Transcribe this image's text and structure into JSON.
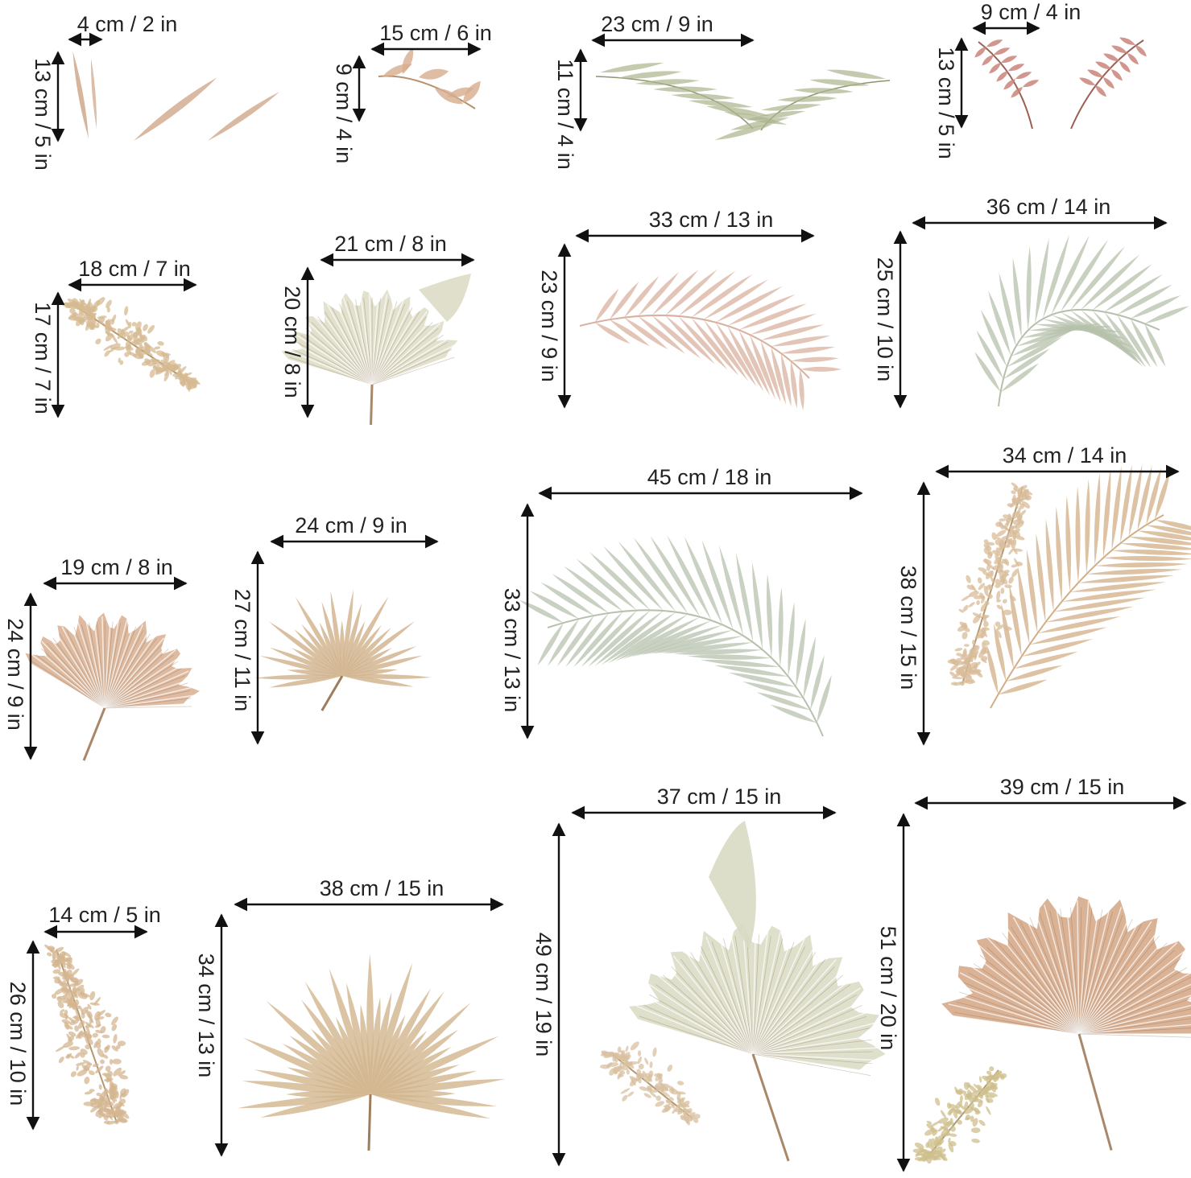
{
  "items": [
    {
      "width_label": "4 cm / 2 in",
      "height_label": "13 cm / 5 in",
      "icon": "dried-grass-blades-icon",
      "color": "#d2ad92"
    },
    {
      "width_label": "15 cm / 6 in",
      "height_label": "9 cm / 4 in",
      "icon": "small-leaf-sprig-icon",
      "color": "#d7ad8d"
    },
    {
      "width_label": "23 cm / 9 in",
      "height_label": "11 cm / 4 in",
      "icon": "willow-leaves-icon",
      "color": "#aab48c"
    },
    {
      "width_label": "9 cm / 4 in",
      "height_label": "13 cm / 5 in",
      "icon": "pink-sprig-icon",
      "color": "#c9847a"
    },
    {
      "width_label": "18 cm / 7 in",
      "height_label": "17 cm / 7 in",
      "icon": "pampas-plume-icon",
      "color": "#d6b992"
    },
    {
      "width_label": "21 cm / 8 in",
      "height_label": "20 cm / 8 in",
      "icon": "cream-fan-palm-icon",
      "color": "#dcdcc6"
    },
    {
      "width_label": "33 cm / 13 in",
      "height_label": "23 cm / 9 in",
      "icon": "blush-palm-frond-icon",
      "color": "#d9b1a0"
    },
    {
      "width_label": "36 cm / 14 in",
      "height_label": "25 cm / 10 in",
      "icon": "sage-palm-frond-icon",
      "color": "#b5c0ab"
    },
    {
      "width_label": "19 cm / 8 in",
      "height_label": "24 cm / 9 in",
      "icon": "tan-fan-palm-icon",
      "color": "#d7ae8f"
    },
    {
      "width_label": "24 cm / 9 in",
      "height_label": "27 cm / 11 in",
      "icon": "spiky-fan-palm-icon",
      "color": "#cfb08a"
    },
    {
      "width_label": "45 cm / 18 in",
      "height_label": "33 cm / 13 in",
      "icon": "large-sage-palm-frond-icon",
      "color": "#b7c2ae"
    },
    {
      "width_label": "34 cm / 14 in",
      "height_label": "38 cm / 15 in",
      "icon": "pampas-and-palm-frond-icon",
      "color": "#d2ae86"
    },
    {
      "width_label": "14 cm / 5 in",
      "height_label": "26 cm / 10 in",
      "icon": "tall-pampas-plume-icon",
      "color": "#d4b690"
    },
    {
      "width_label": "38 cm / 15 in",
      "height_label": "34 cm / 13 in",
      "icon": "large-spiky-fan-palm-icon",
      "color": "#d2b58d"
    },
    {
      "width_label": "37 cm / 15 in",
      "height_label": "49 cm / 19 in",
      "icon": "large-cream-fan-palm-icon",
      "color": "#d9dac3"
    },
    {
      "width_label": "39 cm / 15 in",
      "height_label": "51 cm / 20 in",
      "icon": "large-tan-fan-palm-icon",
      "color": "#d3a584"
    }
  ]
}
